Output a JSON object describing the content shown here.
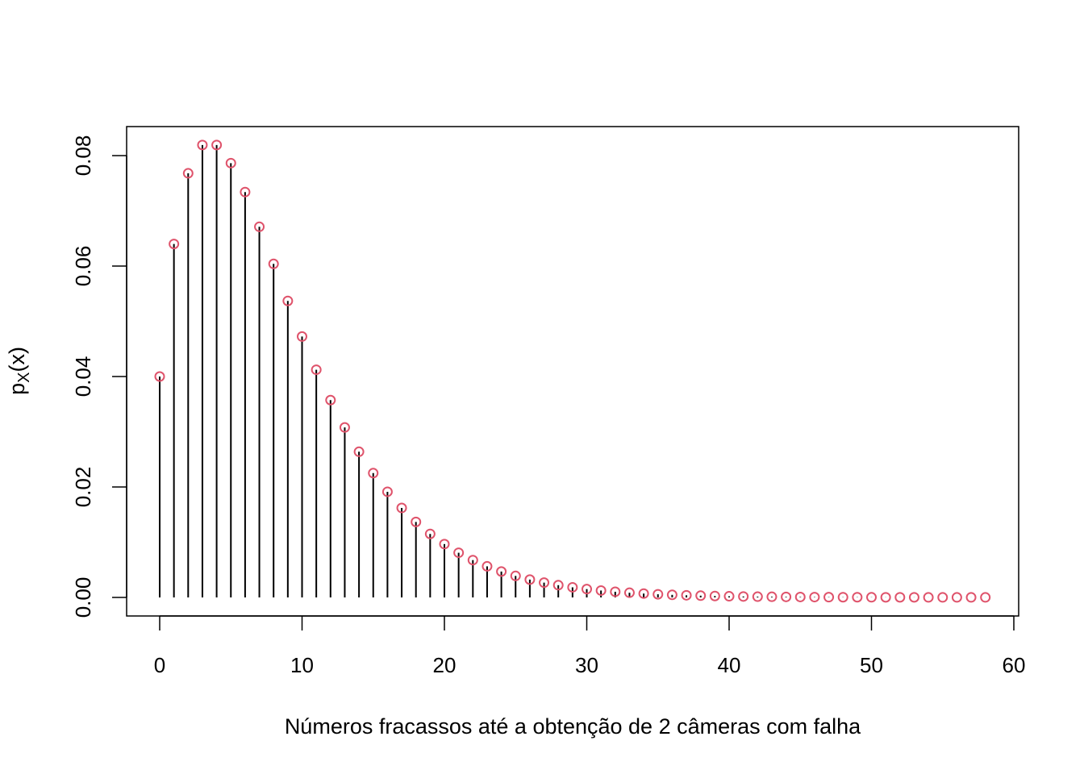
{
  "chart_data": {
    "type": "stem",
    "title": "",
    "xlabel": "Números fracassos até a obtenção de 2 câmeras com falha",
    "ylabel": {
      "base": "p",
      "subscript": "X",
      "rest": "(x)"
    },
    "xlim": [
      0,
      60
    ],
    "ylim": [
      0,
      0.08
    ],
    "x_ticks": [
      0,
      10,
      20,
      30,
      40,
      50,
      60
    ],
    "x_tick_labels": [
      "0",
      "10",
      "20",
      "30",
      "40",
      "50",
      "60"
    ],
    "y_ticks": [
      0,
      0.02,
      0.04,
      0.06,
      0.08
    ],
    "y_tick_labels": [
      "0.00",
      "0.02",
      "0.04",
      "0.06",
      "0.08"
    ],
    "grid": false,
    "point_color": "#DF536B",
    "line_color": "#000000",
    "x": [
      0,
      1,
      2,
      3,
      4,
      5,
      6,
      7,
      8,
      9,
      10,
      11,
      12,
      13,
      14,
      15,
      16,
      17,
      18,
      19,
      20,
      21,
      22,
      23,
      24,
      25,
      26,
      27,
      28,
      29,
      30,
      31,
      32,
      33,
      34,
      35,
      36,
      37,
      38,
      39,
      40,
      41,
      42,
      43,
      44,
      45,
      46,
      47,
      48,
      49,
      50,
      51,
      52,
      53,
      54,
      55,
      56,
      57,
      58
    ],
    "values": [
      0.04,
      0.064,
      0.0768,
      0.08192,
      0.08192,
      0.07864,
      0.0734,
      0.06711,
      0.0604,
      0.05369,
      0.04724,
      0.04123,
      0.03573,
      0.03078,
      0.02638,
      0.02251,
      0.01913,
      0.0162,
      0.01367,
      0.0115,
      0.00966,
      0.00809,
      0.00676,
      0.00563,
      0.00469,
      0.0039,
      0.00323,
      0.00268,
      0.00222,
      0.00183,
      0.00151,
      0.00125,
      0.00103,
      0.00085,
      0.0007,
      0.00057,
      0.00047,
      0.00039,
      0.00032,
      0.00026,
      0.00021,
      0.00017,
      0.00014,
      0.00012,
      0.0001,
      8e-05,
      6e-05,
      5e-05,
      4e-05,
      4e-05,
      3e-05,
      2e-05,
      2e-05,
      2e-05,
      1e-05,
      1e-05,
      1e-05,
      1e-05,
      1e-05
    ]
  }
}
